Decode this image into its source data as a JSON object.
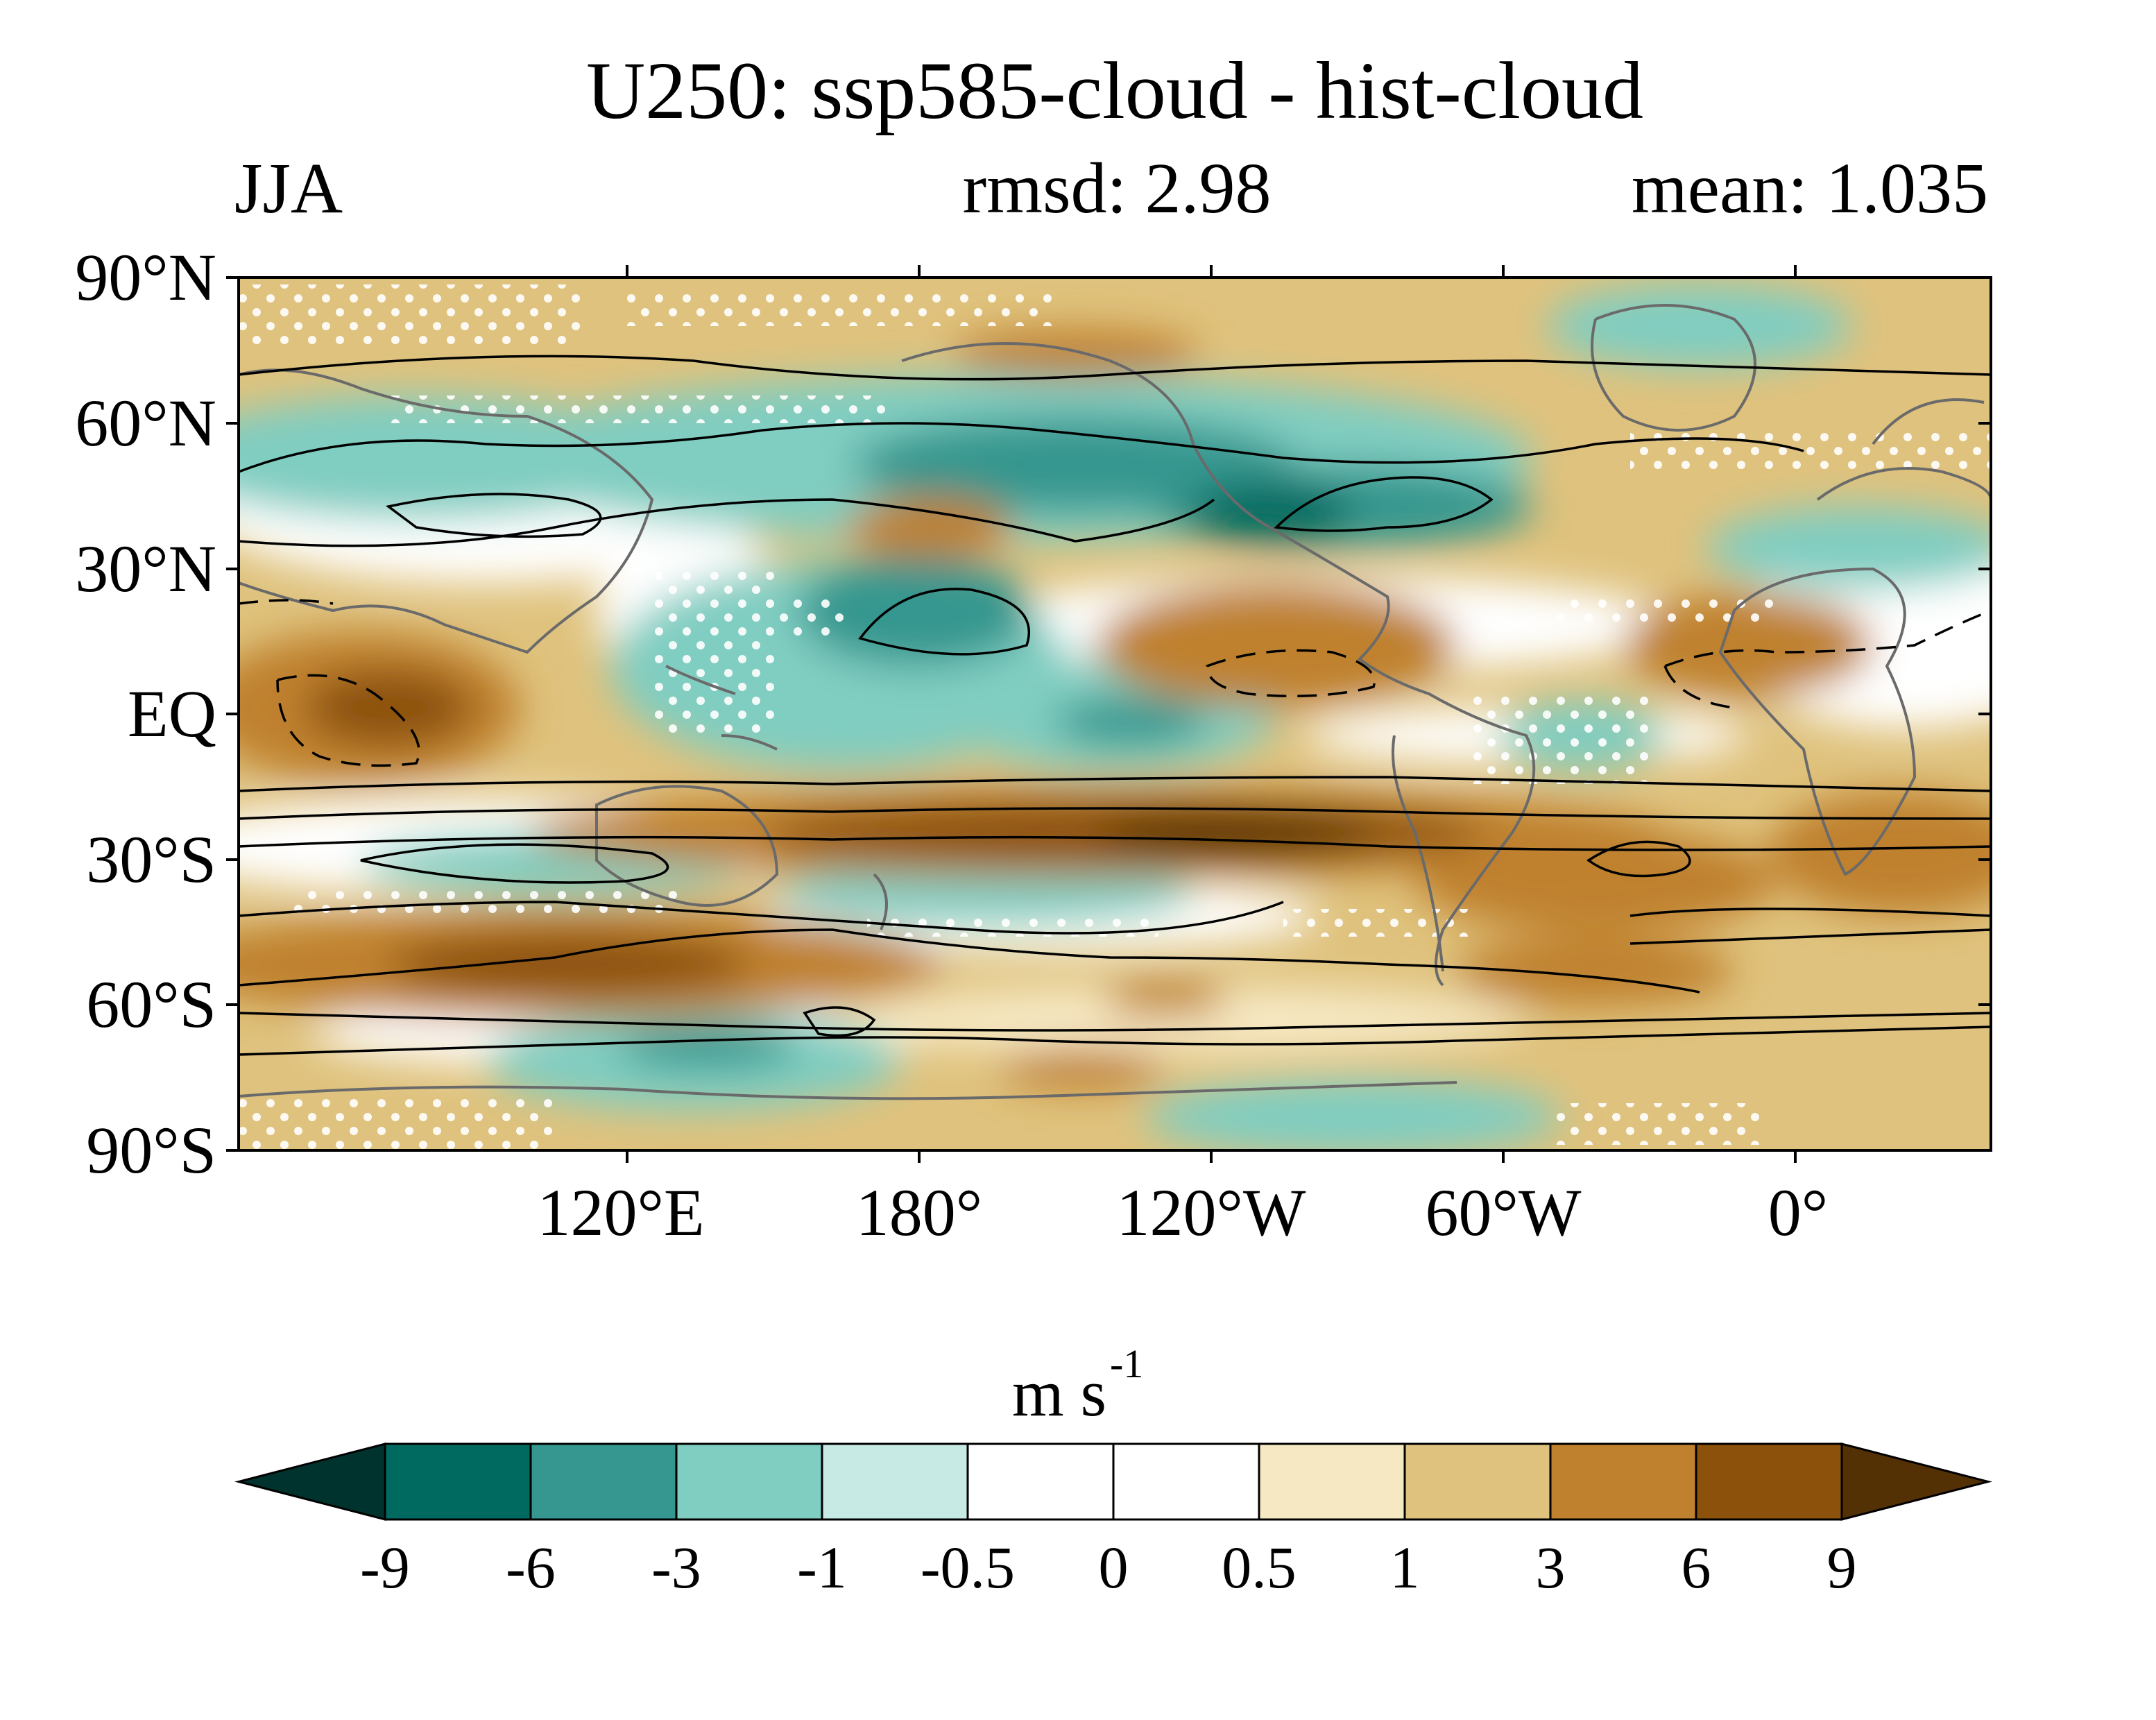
{
  "title": "U250: ssp585-cloud - hist-cloud",
  "season": "JJA",
  "rmsd_text": "rmsd: 2.98",
  "mean_text": "mean: 1.035",
  "units": {
    "base": "m s",
    "exponent": "-1"
  },
  "lat_labels": [
    "90°N",
    "60°N",
    "30°N",
    "EQ",
    "30°S",
    "60°S",
    "90°S"
  ],
  "lon_labels": [
    "120°E",
    "180°",
    "120°W",
    "60°W",
    "0°"
  ],
  "colorbar": {
    "levels": [
      "-9",
      "-6",
      "-3",
      "-1",
      "-0.5",
      "0",
      "0.5",
      "1",
      "3",
      "6",
      "9"
    ],
    "colors": [
      "#01332e",
      "#006a60",
      "#35978f",
      "#80cdc1",
      "#c7eae5",
      "#ffffff",
      "#ffffff",
      "#f6e8c3",
      "#dfc27d",
      "#bf812d",
      "#8c510a",
      "#543005"
    ]
  },
  "colors": {
    "coastline": "#6a6a6a",
    "contour": "#000000",
    "stipple": "#ffffff"
  }
}
